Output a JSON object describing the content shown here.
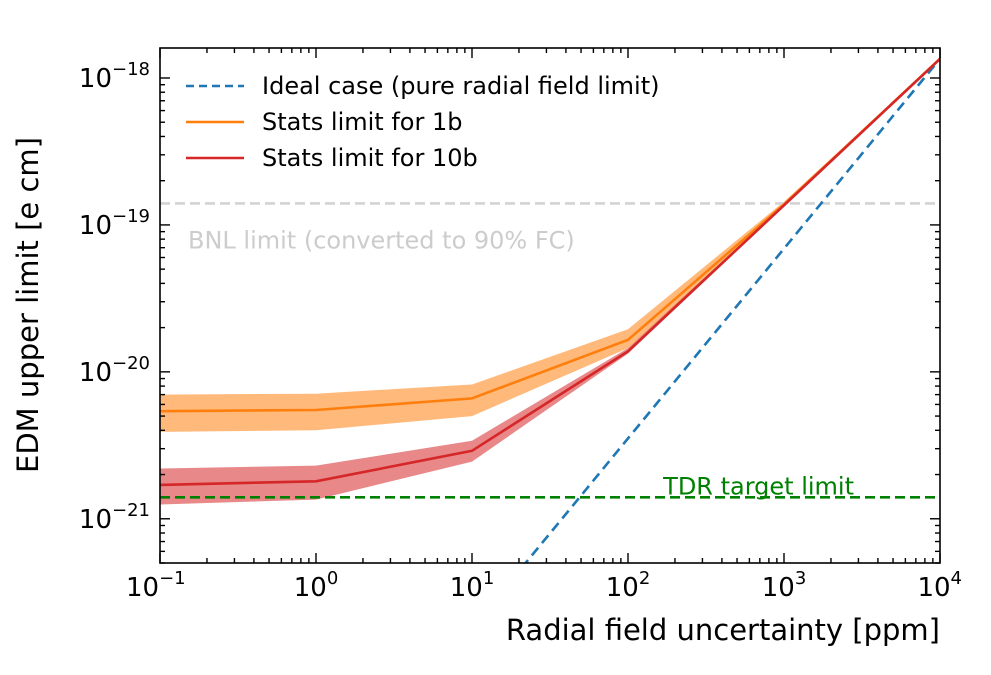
{
  "chart_data": {
    "type": "line",
    "xlabel": "Radial field uncertainty [ppm]",
    "ylabel": "EDM upper limit [e cm]",
    "xscale": "log",
    "yscale": "log",
    "xlim": [
      0.1,
      10000
    ],
    "ylim": [
      5e-22,
      1.6e-18
    ],
    "x_ticks": [
      {
        "value": 0.1,
        "base": "10",
        "exp": "−1"
      },
      {
        "value": 1,
        "base": "10",
        "exp": "0"
      },
      {
        "value": 10,
        "base": "10",
        "exp": "1"
      },
      {
        "value": 100,
        "base": "10",
        "exp": "2"
      },
      {
        "value": 1000,
        "base": "10",
        "exp": "3"
      },
      {
        "value": 10000,
        "base": "10",
        "exp": "4"
      }
    ],
    "y_ticks": [
      {
        "value": 1e-21,
        "base": "10",
        "exp": "−21"
      },
      {
        "value": 1e-20,
        "base": "10",
        "exp": "−20"
      },
      {
        "value": 1e-19,
        "base": "10",
        "exp": "−19"
      },
      {
        "value": 1e-18,
        "base": "10",
        "exp": "−18"
      }
    ],
    "legend_position": "top-left",
    "grid": false,
    "series": [
      {
        "name": "Ideal case (pure radial field limit)",
        "style": "dashed",
        "color": "#1f77b4",
        "x": [
          4,
          10000
        ],
        "y": [
          5.5e-23,
          1.35e-18
        ]
      },
      {
        "name": "Stats limit for 1b",
        "style": "solid",
        "color": "#ff7f0e",
        "x": [
          0.1,
          1,
          10,
          100,
          1000,
          10000
        ],
        "y": [
          5.4e-21,
          5.5e-21,
          6.6e-21,
          1.65e-20,
          1.38e-19,
          1.35e-18
        ],
        "band_low": [
          3.9e-21,
          4e-21,
          5e-21,
          1.45e-20,
          1.33e-19,
          1.35e-18
        ],
        "band_high": [
          7e-21,
          7.1e-21,
          8.2e-21,
          1.95e-20,
          1.44e-19,
          1.35e-18
        ],
        "band_color": "#ff7f0e"
      },
      {
        "name": "Stats limit for 10b",
        "style": "solid",
        "color": "#d62728",
        "x": [
          0.1,
          1,
          10,
          100,
          1000,
          10000
        ],
        "y": [
          1.7e-21,
          1.8e-21,
          2.9e-21,
          1.38e-20,
          1.36e-19,
          1.35e-18
        ],
        "band_low": [
          1.25e-21,
          1.35e-21,
          2.45e-21,
          1.33e-20,
          1.34e-19,
          1.35e-18
        ],
        "band_high": [
          2.2e-21,
          2.3e-21,
          3.4e-21,
          1.45e-20,
          1.38e-19,
          1.35e-18
        ],
        "band_color": "#d62728"
      }
    ],
    "reference_lines": [
      {
        "label": "BNL limit (converted to 90% FC)",
        "y": 1.4e-19,
        "color": "#d3d3d3",
        "style": "dashed"
      },
      {
        "label": "TDR target limit",
        "y": 1.4e-21,
        "color": "#008000",
        "style": "dashed"
      }
    ]
  }
}
